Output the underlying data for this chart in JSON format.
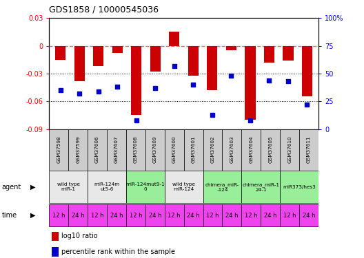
{
  "title": "GDS1858 / 10000545036",
  "samples": [
    "GSM37598",
    "GSM37599",
    "GSM37606",
    "GSM37607",
    "GSM37608",
    "GSM37609",
    "GSM37600",
    "GSM37601",
    "GSM37602",
    "GSM37603",
    "GSM37604",
    "GSM37605",
    "GSM37610",
    "GSM37611"
  ],
  "log10_ratio": [
    -0.015,
    -0.038,
    -0.022,
    -0.008,
    -0.075,
    -0.028,
    0.015,
    -0.032,
    -0.048,
    -0.005,
    -0.08,
    -0.018,
    -0.016,
    -0.055
  ],
  "percentile_rank": [
    35,
    32,
    34,
    38,
    8,
    37,
    57,
    40,
    13,
    48,
    8,
    44,
    43,
    22
  ],
  "ylim_left": [
    -0.09,
    0.03
  ],
  "ylim_right": [
    0,
    100
  ],
  "yticks_left": [
    0.03,
    0,
    -0.03,
    -0.06,
    -0.09
  ],
  "yticks_right": [
    100,
    75,
    50,
    25,
    0
  ],
  "agent_groups": [
    {
      "label": "wild type\nmiR-1",
      "cols": [
        0,
        1
      ],
      "color": "#e8e8e8"
    },
    {
      "label": "miR-124m\nut5-6",
      "cols": [
        2,
        3
      ],
      "color": "#e8e8e8"
    },
    {
      "label": "miR-124mut9-1\n0",
      "cols": [
        4,
        5
      ],
      "color": "#99ee99"
    },
    {
      "label": "wild type\nmiR-124",
      "cols": [
        6,
        7
      ],
      "color": "#e8e8e8"
    },
    {
      "label": "chimera_miR-\n-124",
      "cols": [
        8,
        9
      ],
      "color": "#99ee99"
    },
    {
      "label": "chimera_miR-1\n24-1",
      "cols": [
        10,
        11
      ],
      "color": "#99ee99"
    },
    {
      "label": "miR373/hes3",
      "cols": [
        12,
        13
      ],
      "color": "#99ee99"
    }
  ],
  "time_labels": [
    "12 h",
    "24 h",
    "12 h",
    "24 h",
    "12 h",
    "24 h",
    "12 h",
    "24 h",
    "12 h",
    "24 h",
    "12 h",
    "24 h",
    "12 h",
    "24 h"
  ],
  "time_color": "#ee44ee",
  "bar_color": "#cc0000",
  "dot_color": "#0000cc",
  "bg_color": "#ffffff",
  "dashed_line_color": "#ff6666",
  "sample_bg_color": "#cccccc"
}
